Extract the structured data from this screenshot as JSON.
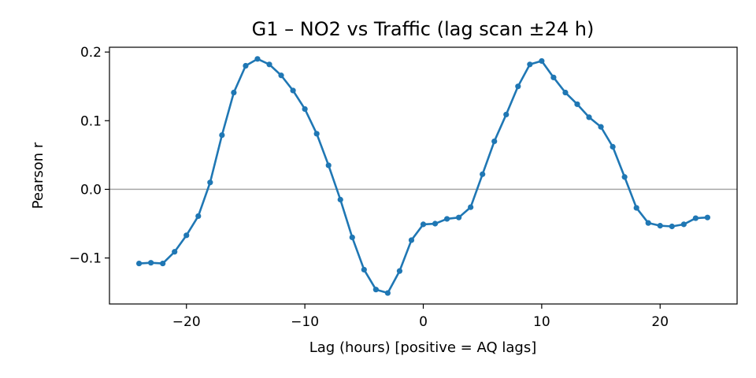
{
  "chart_data": {
    "type": "line",
    "title": "G1 – NO2 vs Traffic (lag scan ±24 h)",
    "xlabel": "Lag (hours)  [positive = AQ lags]",
    "ylabel": "Pearson r",
    "xlim": [
      -26.5,
      26.5
    ],
    "ylim": [
      -0.167,
      0.207
    ],
    "x_ticks": [
      -20,
      -10,
      0,
      10,
      20
    ],
    "x_tick_labels": [
      "−20",
      "−10",
      "0",
      "10",
      "20"
    ],
    "y_ticks": [
      -0.1,
      0.0,
      0.1,
      0.2
    ],
    "y_tick_labels": [
      "−0.1",
      "0.0",
      "0.1",
      "0.2"
    ],
    "reference_line_y": 0,
    "grid": false,
    "series_color": "#1f77b4",
    "reference_line_color": "#a6a6a6",
    "x": [
      -24,
      -23,
      -22,
      -21,
      -20,
      -19,
      -18,
      -17,
      -16,
      -15,
      -14,
      -13,
      -12,
      -11,
      -10,
      -9,
      -8,
      -7,
      -6,
      -5,
      -4,
      -3,
      -2,
      -1,
      0,
      1,
      2,
      3,
      4,
      5,
      6,
      7,
      8,
      9,
      10,
      11,
      12,
      13,
      14,
      15,
      16,
      17,
      18,
      19,
      20,
      21,
      22,
      23,
      24
    ],
    "y": [
      -0.108,
      -0.107,
      -0.108,
      -0.091,
      -0.067,
      -0.039,
      0.01,
      0.079,
      0.141,
      0.18,
      0.19,
      0.182,
      0.166,
      0.144,
      0.117,
      0.081,
      0.035,
      -0.015,
      -0.07,
      -0.117,
      -0.146,
      -0.151,
      -0.119,
      -0.074,
      -0.051,
      -0.05,
      -0.043,
      -0.041,
      -0.026,
      0.022,
      0.07,
      0.109,
      0.15,
      0.182,
      0.187,
      0.163,
      0.141,
      0.124,
      0.105,
      0.091,
      0.062,
      0.018,
      -0.027,
      -0.049,
      -0.053,
      -0.054,
      -0.051,
      -0.042,
      -0.041
    ]
  }
}
